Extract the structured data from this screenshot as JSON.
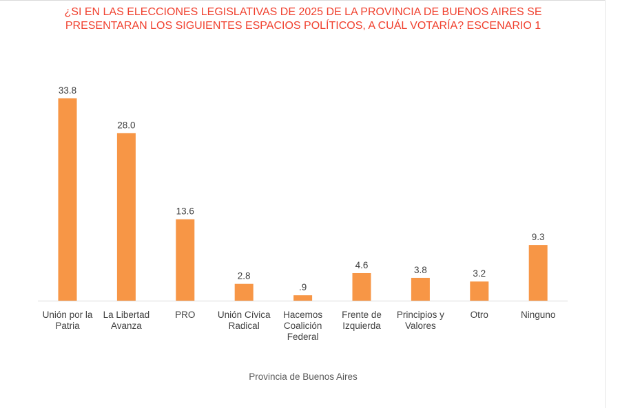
{
  "chart_data": {
    "type": "bar",
    "title_lines": [
      "¿SI EN LAS ELECCIONES LEGISLATIVAS DE 2025 DE LA PROVINCIA DE BUENOS AIRES SE",
      "PRESENTARAN LOS SIGUIENTES ESPACIOS POLÍTICOS, A CUÁL VOTARÍA? ESCENARIO 1"
    ],
    "categories": [
      [
        "Unión por la",
        "Patria"
      ],
      [
        "La Libertad",
        "Avanza"
      ],
      [
        "PRO"
      ],
      [
        "Unión Cívica",
        "Radical"
      ],
      [
        "Hacemos",
        "Coalición",
        "Federal"
      ],
      [
        "Frente de",
        "Izquierda"
      ],
      [
        "Principios y",
        "Valores"
      ],
      [
        "Otro"
      ],
      [
        "Ninguno"
      ]
    ],
    "values": [
      33.8,
      28.0,
      13.6,
      2.8,
      0.9,
      4.6,
      3.8,
      3.2,
      9.3
    ],
    "value_labels": [
      "33.8",
      "28.0",
      "13.6",
      "2.8",
      ".9",
      "4.6",
      "3.8",
      "3.2",
      "9.3"
    ],
    "xlabel": "Provincia de Buenos Aires",
    "ylim": [
      0,
      35
    ],
    "grid": false,
    "colors": {
      "bar": "#f79646",
      "title": "#f0402e",
      "text": "#404040",
      "axis": "#d9d9d9"
    }
  }
}
